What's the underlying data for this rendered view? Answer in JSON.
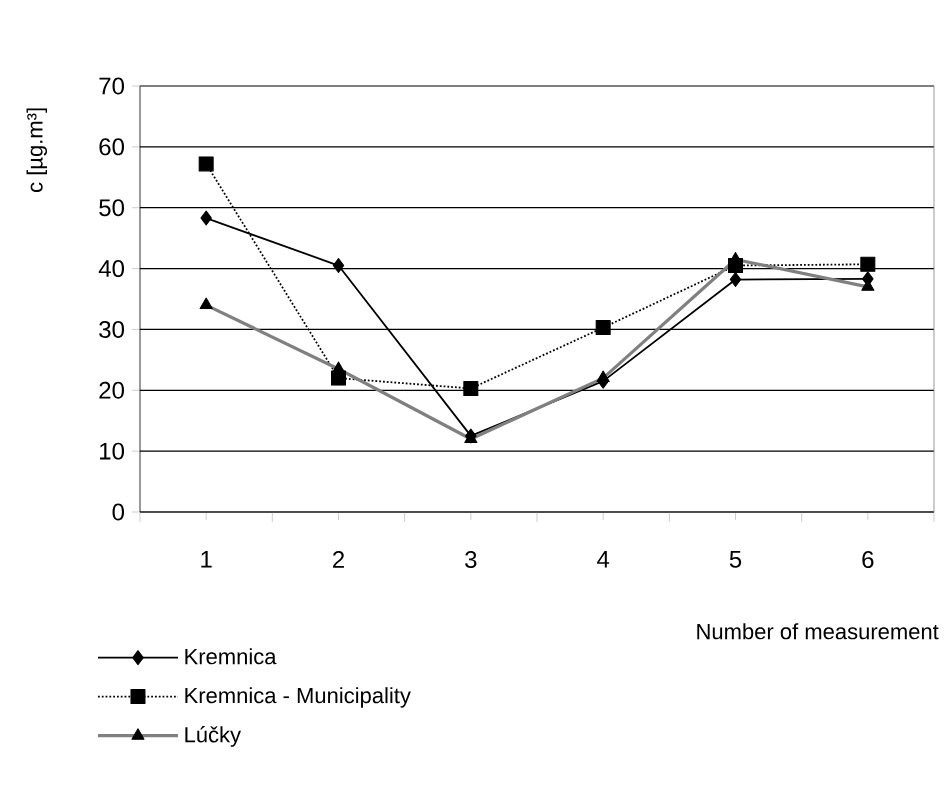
{
  "chart_data": {
    "type": "line",
    "xlabel": "Number of measurement",
    "ylabel": "c [µg.m³]",
    "categories": [
      "1",
      "2",
      "3",
      "4",
      "5",
      "6"
    ],
    "series": [
      {
        "name": "Kremnica",
        "color": "#000000",
        "marker": "diamond",
        "line_style": "solid",
        "values": [
          48.3,
          40.5,
          12.5,
          21.5,
          38.2,
          38.3
        ]
      },
      {
        "name": "Kremnica - Municipality",
        "color": "#000000",
        "marker": "square",
        "line_style": "dotted",
        "values": [
          57.2,
          22,
          20.3,
          30.3,
          40.5,
          40.7
        ]
      },
      {
        "name": "Lúčky",
        "color": "#808080",
        "marker": "triangle",
        "line_style": "solid",
        "values": [
          34,
          23.5,
          12,
          22,
          41.5,
          37
        ]
      }
    ],
    "ylim": [
      0,
      70
    ],
    "yticks": [
      0,
      10,
      20,
      30,
      40,
      50,
      60,
      70
    ],
    "grid": "y",
    "legend": "bottom left"
  }
}
